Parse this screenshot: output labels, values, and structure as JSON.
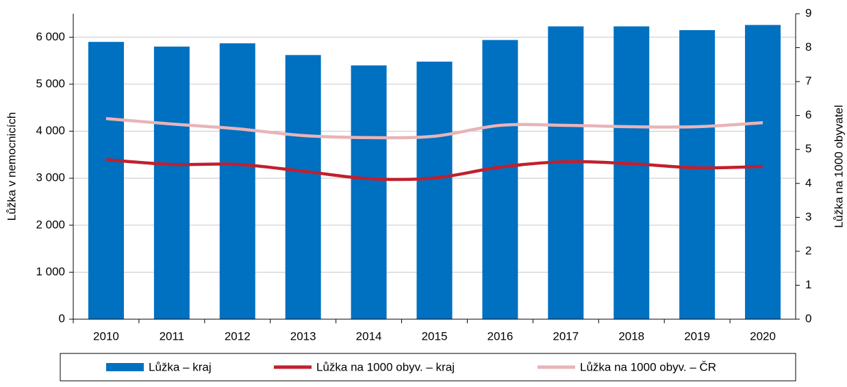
{
  "chart_data": {
    "type": "bar",
    "categories": [
      "2010",
      "2011",
      "2012",
      "2013",
      "2014",
      "2015",
      "2016",
      "2017",
      "2018",
      "2019",
      "2020"
    ],
    "y_label": "Lůžka v nemocnicích",
    "y2_label": "Lůžka na 1000 obyvatel",
    "series": [
      {
        "name": "Lůžka – kraj",
        "type": "bar",
        "color": "#0070c0",
        "values": [
          5900,
          5800,
          5870,
          5620,
          5400,
          5480,
          5940,
          6230,
          6230,
          6150,
          6260
        ]
      },
      {
        "name": "Lůžka na 1000 obyv. – kraj",
        "type": "line",
        "axis": "y2",
        "color": "#c0202e",
        "values": [
          4.7,
          4.56,
          4.56,
          4.36,
          4.14,
          4.16,
          4.48,
          4.64,
          4.58,
          4.46,
          4.5
        ]
      },
      {
        "name": "Lůžka na 1000 obyv. – ČR",
        "type": "line",
        "axis": "y2",
        "color": "#e8b4b8",
        "values": [
          5.91,
          5.75,
          5.61,
          5.41,
          5.35,
          5.39,
          5.71,
          5.71,
          5.67,
          5.67,
          5.79
        ]
      }
    ],
    "ylim": [
      0,
      6500
    ],
    "yticks": [
      0,
      {
        "value": 1000,
        "label": "1 000"
      },
      {
        "value": 2000,
        "label": "2 000"
      },
      {
        "value": 3000,
        "label": "3 000"
      },
      {
        "value": 4000,
        "label": "4 000"
      },
      {
        "value": 5000,
        "label": "5 000"
      },
      {
        "value": 6000,
        "label": "6 000"
      }
    ],
    "y2lim": [
      0,
      9
    ],
    "y2ticks": [
      0,
      1,
      2,
      3,
      4,
      5,
      6,
      7,
      8,
      9
    ],
    "grid": true,
    "legend": "bottom"
  }
}
